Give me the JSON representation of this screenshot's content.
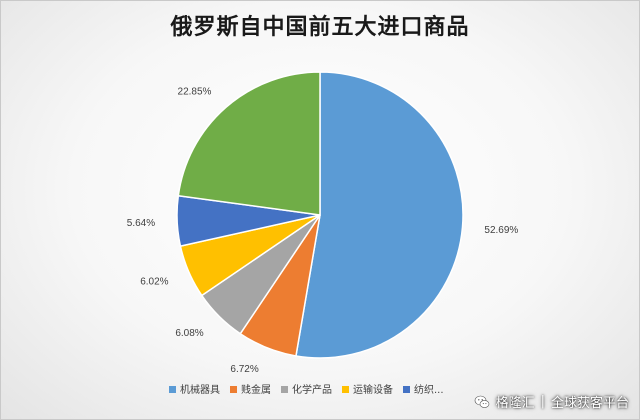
{
  "chart_data": {
    "type": "pie",
    "title": "俄罗斯自中国前五大进口商品",
    "start_angle_deg": 0,
    "direction": "clockwise",
    "slices": [
      {
        "name": "机械器具",
        "value": 52.69,
        "label": "52.69%",
        "color": "#5B9BD5"
      },
      {
        "name": "贱金属",
        "value": 6.72,
        "label": "6.72%",
        "color": "#ED7D31"
      },
      {
        "name": "化学产品",
        "value": 6.08,
        "label": "6.08%",
        "color": "#A5A5A5"
      },
      {
        "name": "运输设备",
        "value": 6.02,
        "label": "6.02%",
        "color": "#FFC000"
      },
      {
        "name": "纺织",
        "value": 5.64,
        "label": "5.64%",
        "color": "#4472C4"
      },
      {
        "name": "",
        "value": 22.85,
        "label": "22.85%",
        "color": "#70AD47"
      }
    ],
    "legend": {
      "position": "bottom",
      "entries": [
        "机械器具",
        "贱金属",
        "化学产品",
        "运输设备",
        "纺织..."
      ]
    }
  },
  "watermark": {
    "brand": "格隆汇",
    "separator": "|",
    "slogan": "全球获客平台"
  }
}
